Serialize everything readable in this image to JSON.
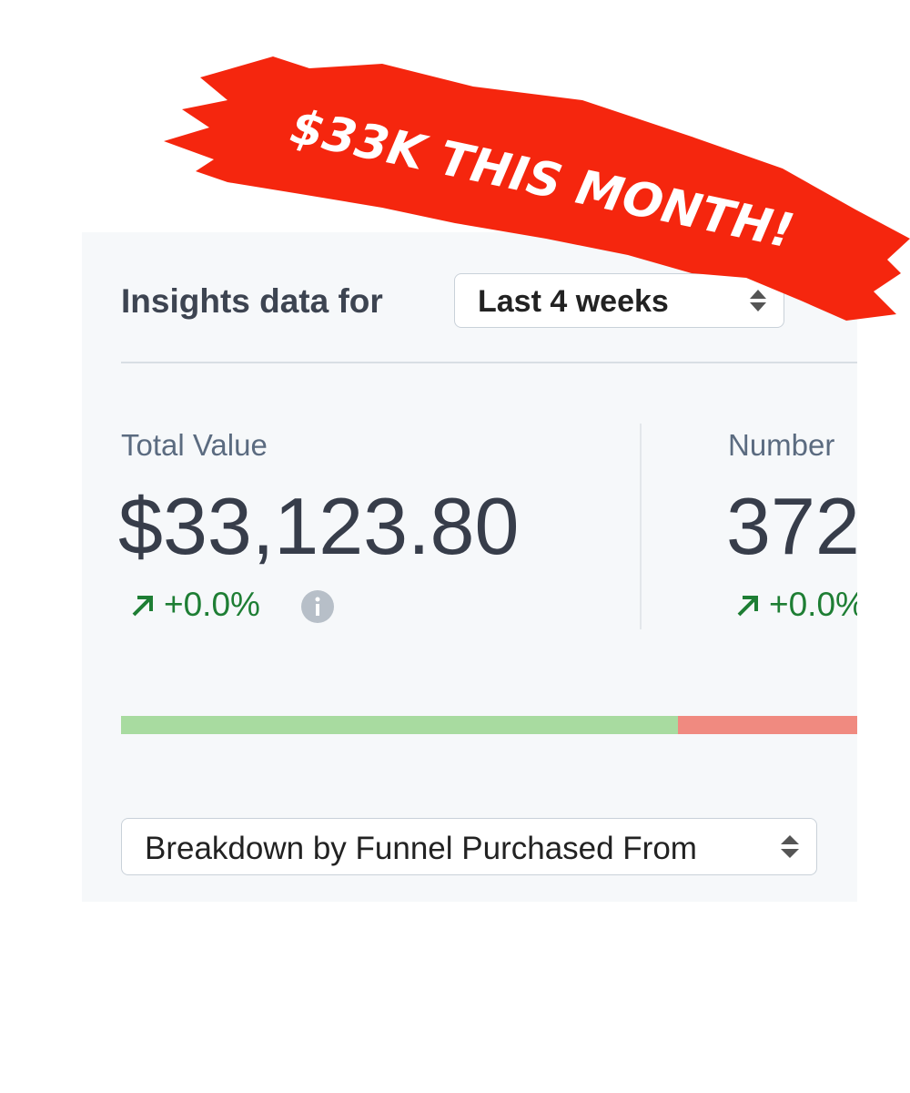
{
  "banner": "$33K THIS MONTH!",
  "filter": {
    "label": "Insights data for",
    "select": "Last 4 weeks"
  },
  "metrics": [
    {
      "label": "Total Value",
      "value": "$33,123.80",
      "change": "+0.0%"
    },
    {
      "label": "Number",
      "value": "372",
      "change": "+0.0%"
    }
  ],
  "breakdown": {
    "select": "Breakdown by Funnel Purchased From"
  }
}
